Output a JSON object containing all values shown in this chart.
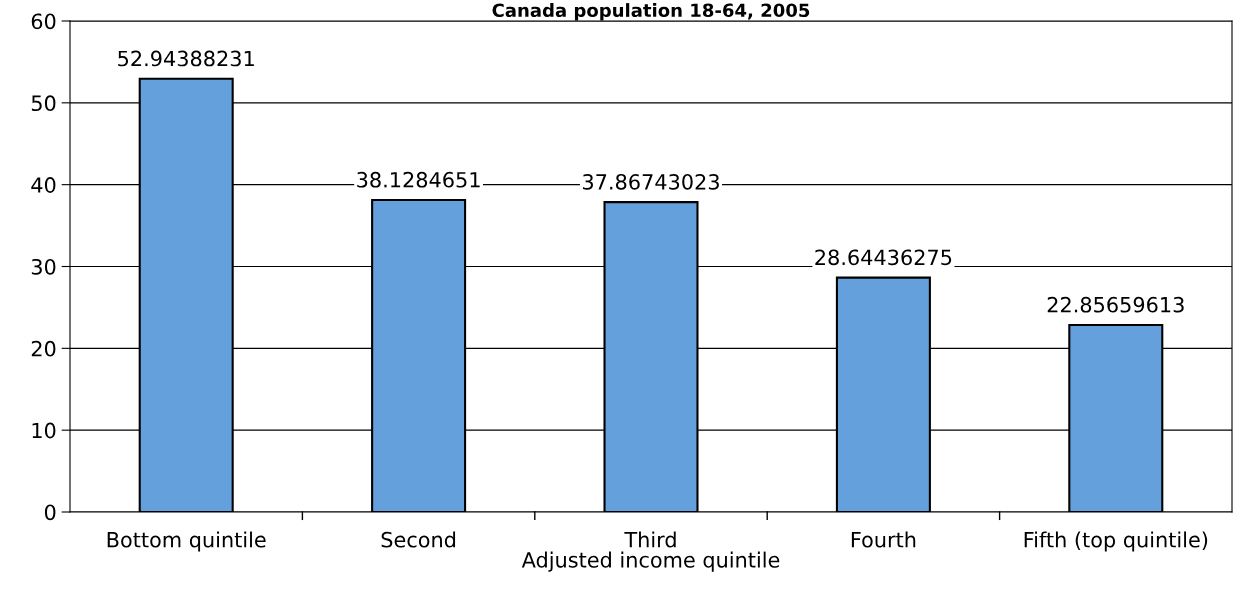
{
  "chart_data": {
    "type": "bar",
    "title": "Canada population 18-64, 2005",
    "xlabel": "Adjusted income quintile",
    "categories": [
      "Bottom quintile",
      "Second",
      "Third",
      "Fourth",
      "Fifth (top quintile)"
    ],
    "values": [
      52.94388231,
      38.1284651,
      37.86743023,
      28.64436275,
      22.85659613
    ],
    "color": "#64a0dc",
    "ylim": [
      0,
      60
    ],
    "yticks": [
      0,
      10,
      20,
      30,
      40,
      50,
      60
    ],
    "grid": "y",
    "data_labels": true
  }
}
